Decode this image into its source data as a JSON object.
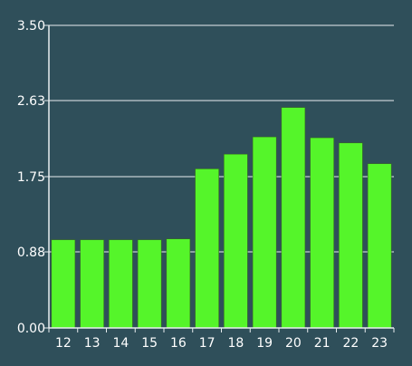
{
  "chart_data": {
    "type": "bar",
    "categories": [
      "12",
      "13",
      "14",
      "15",
      "16",
      "17",
      "18",
      "19",
      "20",
      "21",
      "22",
      "23"
    ],
    "values": [
      1.02,
      1.02,
      1.02,
      1.02,
      1.03,
      1.84,
      2.01,
      2.21,
      2.55,
      2.2,
      2.14,
      1.9
    ],
    "y_ticks": [
      "0.00",
      "0.88",
      "1.75",
      "2.63",
      "3.50"
    ],
    "ylim": [
      0,
      3.5
    ],
    "grid": true,
    "colors": {
      "background": "#2f4f5a",
      "bar": "#55f52a",
      "grid": "#e8eef0",
      "text": "#ffffff"
    }
  }
}
